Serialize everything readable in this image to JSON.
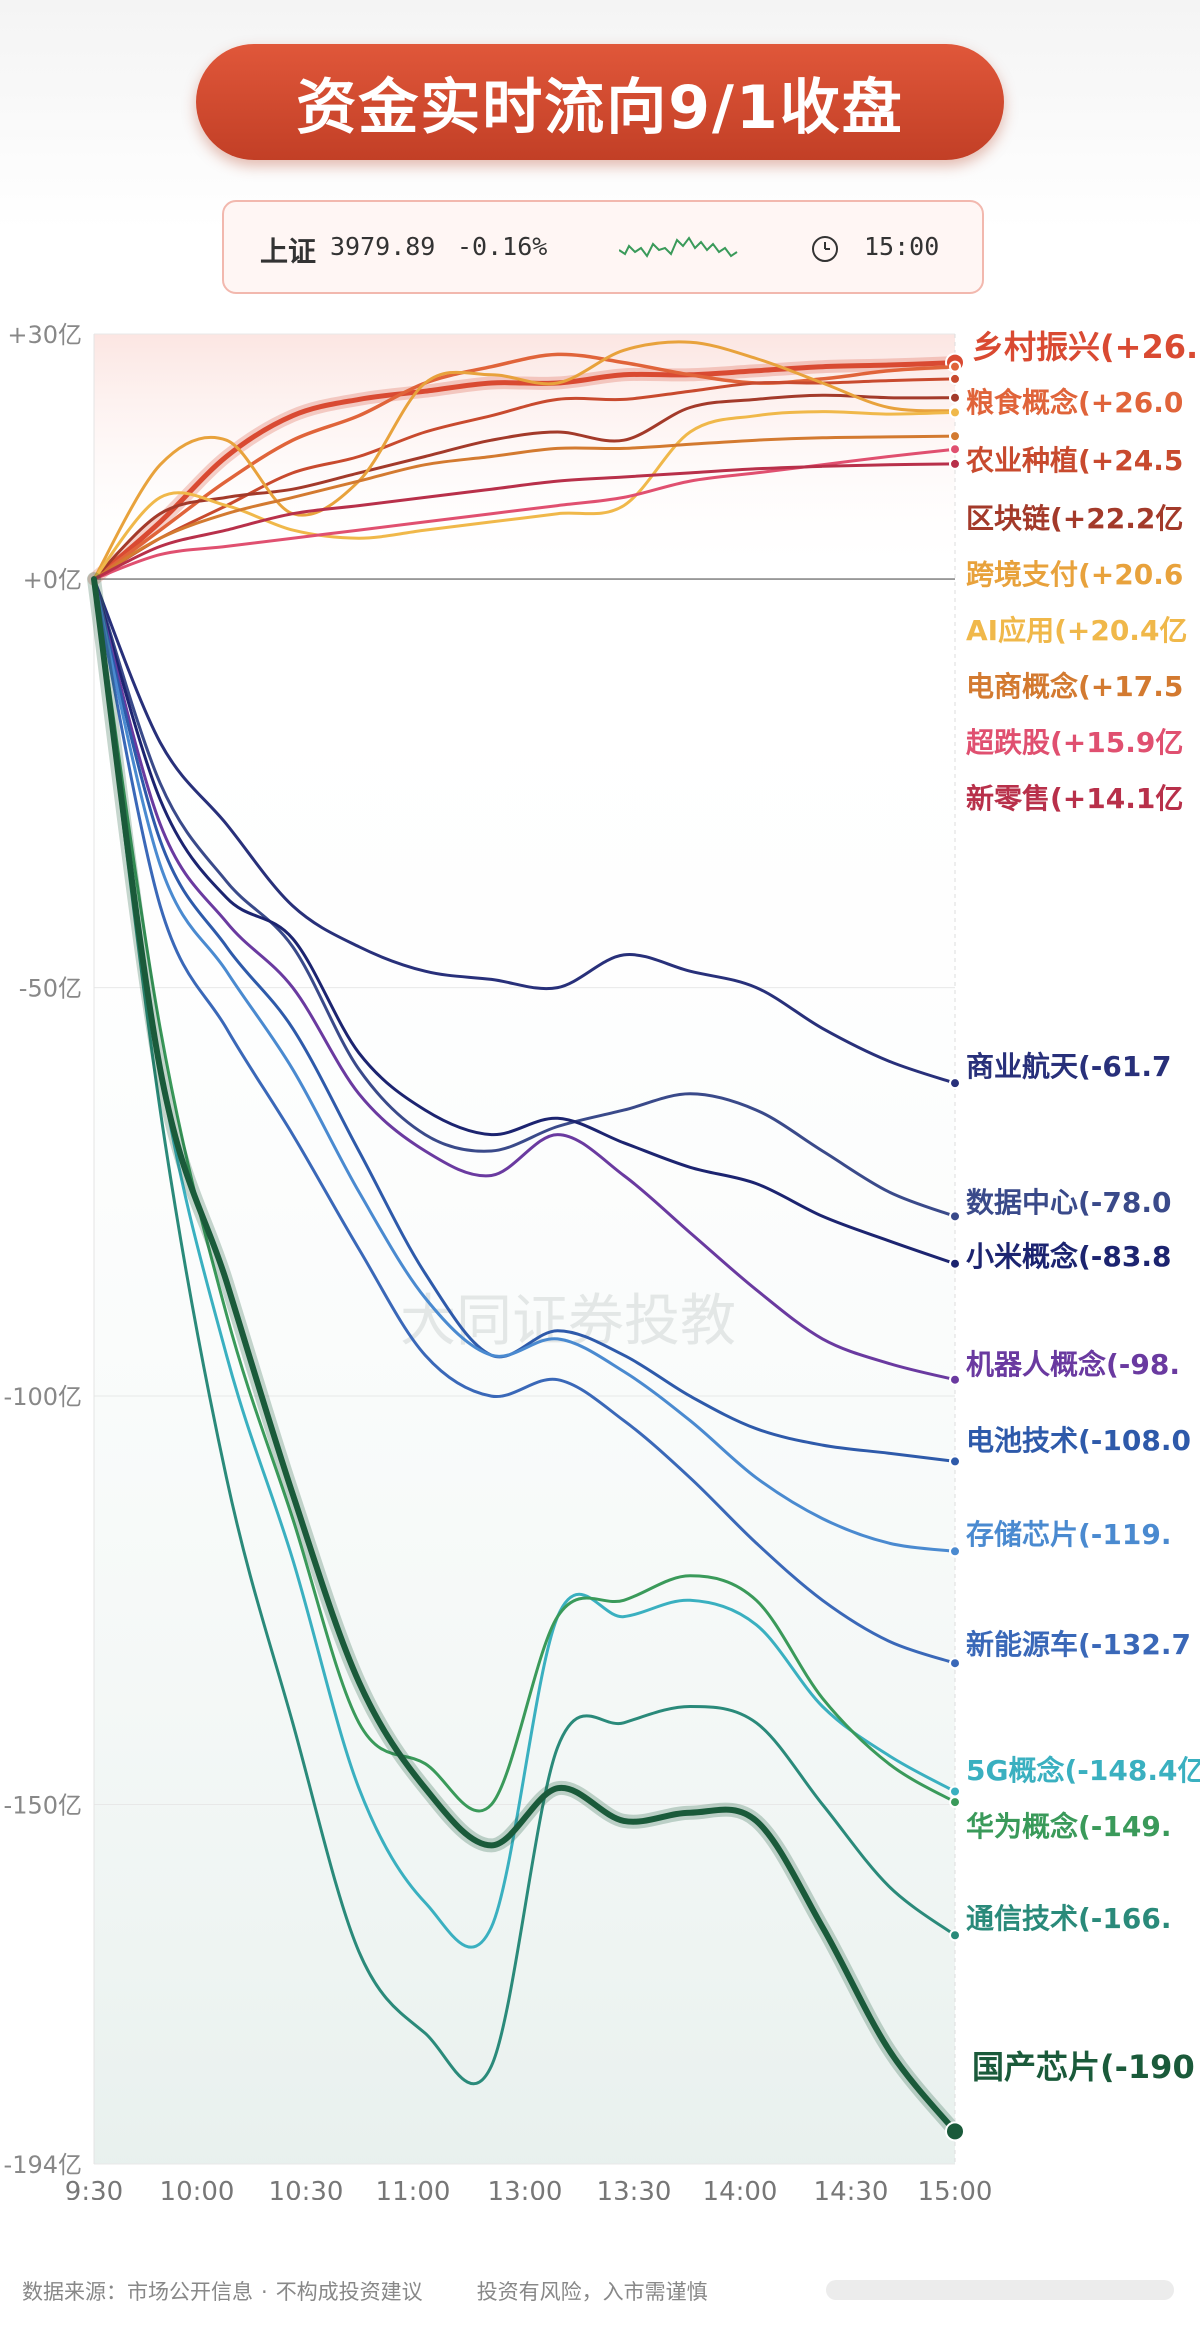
{
  "title": "资金实时流向9/1收盘",
  "index": {
    "name": "上证",
    "value": "3979.89",
    "change": "-0.16%",
    "time": "15:00",
    "colors": {
      "spark": "#3a9a5a"
    }
  },
  "watermark": "大同证券投教",
  "footer": {
    "source": "数据来源：市场公开信息",
    "sep": "·",
    "disclaimer": "不构成投资建议",
    "risk": "投资有风险，入市需谨慎"
  },
  "chart_data": {
    "type": "line",
    "ylabel": "",
    "ylim": [
      -194,
      30
    ],
    "y_ticks": [
      30,
      0,
      -50,
      -100,
      -150,
      -194
    ],
    "y_tick_labels": [
      "+30亿",
      "+0亿",
      "-50亿",
      "-100亿",
      "-150亿",
      "-194亿"
    ],
    "x_ticks": [
      "9:30",
      "10:00",
      "10:30",
      "11:00",
      "13:00",
      "13:30",
      "14:00",
      "14:30",
      "15:00"
    ],
    "series": [
      {
        "name": "乡村振兴",
        "label": "乡村振兴(+26.",
        "color": "#d94a32",
        "width": 5,
        "values": [
          0,
          7,
          15,
          20,
          22,
          23,
          24,
          24,
          25,
          25,
          25.5,
          26,
          26.2,
          26.5
        ]
      },
      {
        "name": "粮食概念",
        "label": "粮食概念(+26.0",
        "color": "#e0643a",
        "width": 3.5,
        "values": [
          0,
          6,
          12,
          17,
          20,
          24,
          26,
          27.5,
          26.5,
          25,
          24,
          24.5,
          25.5,
          26
        ]
      },
      {
        "name": "农业种植",
        "label": "农业种植(+24.5",
        "color": "#c84a2e",
        "width": 3,
        "values": [
          0,
          5,
          9,
          13,
          15,
          18,
          20,
          22,
          22,
          23,
          24,
          24,
          24.3,
          24.5
        ]
      },
      {
        "name": "区块链",
        "label": "区块链(+22.2亿",
        "color": "#a33a2a",
        "width": 3,
        "values": [
          0,
          8,
          10,
          11,
          13,
          15,
          17,
          18,
          17,
          21,
          22,
          22.5,
          22.2,
          22.2
        ]
      },
      {
        "name": "跨境支付",
        "label": "跨境支付(+20.6",
        "color": "#e8a23c",
        "width": 3,
        "values": [
          0,
          14,
          17,
          8,
          12,
          24,
          25,
          24,
          28,
          29,
          27,
          24,
          21,
          20.6
        ]
      },
      {
        "name": "AI应用",
        "label": "AI应用(+20.4亿",
        "color": "#f0b84a",
        "width": 3,
        "values": [
          0,
          10,
          9,
          6,
          5,
          6,
          7,
          8,
          9,
          18,
          20,
          20.5,
          20.2,
          20.4
        ]
      },
      {
        "name": "电商概念",
        "label": "电商概念(+17.5",
        "color": "#d37a30",
        "width": 3,
        "values": [
          0,
          5,
          8,
          10,
          12,
          14,
          15,
          16,
          16,
          16.5,
          17,
          17.3,
          17.4,
          17.5
        ]
      },
      {
        "name": "超跌股",
        "label": "超跌股(+15.9亿",
        "color": "#e05070",
        "width": 3,
        "values": [
          0,
          3,
          4,
          5,
          6,
          7,
          8,
          9,
          10,
          12,
          13,
          14,
          15,
          15.9
        ]
      },
      {
        "name": "新零售",
        "label": "新零售(+14.1亿",
        "color": "#b8304a",
        "width": 3,
        "values": [
          0,
          4,
          6,
          8,
          9,
          10,
          11,
          12,
          12.5,
          13,
          13.5,
          13.8,
          14,
          14.1
        ]
      },
      {
        "name": "商业航天",
        "label": "商业航天(-61.7",
        "color": "#28307a",
        "width": 3,
        "values": [
          0,
          -20,
          -30,
          -40,
          -45,
          -48,
          -49,
          -50,
          -46,
          -48,
          -50,
          -55,
          -59,
          -61.7
        ]
      },
      {
        "name": "数据中心",
        "label": "数据中心(-78.0",
        "color": "#3a4a8a",
        "width": 3,
        "values": [
          0,
          -25,
          -37,
          -45,
          -60,
          -68,
          -70,
          -67,
          -65,
          -63,
          -65,
          -70,
          -75,
          -78
        ]
      },
      {
        "name": "小米概念",
        "label": "小米概念(-83.8",
        "color": "#1c2470",
        "width": 3,
        "values": [
          0,
          -27,
          -39,
          -44,
          -58,
          -65,
          -68,
          -66,
          -69,
          -72,
          -74,
          -78,
          -81,
          -83.8
        ]
      },
      {
        "name": "机器人概念",
        "label": "机器人概念(-98.",
        "color": "#6a3aa0",
        "width": 3,
        "values": [
          0,
          -30,
          -42,
          -50,
          -63,
          -70,
          -73,
          -68,
          -73,
          -80,
          -87,
          -93,
          -96,
          -98
        ]
      },
      {
        "name": "电池技术",
        "label": "电池技术(-108.0",
        "color": "#2e5aaa",
        "width": 3,
        "values": [
          0,
          -32,
          -45,
          -55,
          -70,
          -85,
          -95,
          -92,
          -95,
          -100,
          -104,
          -106,
          -107,
          -108
        ]
      },
      {
        "name": "存储芯片",
        "label": "存储芯片(-119.",
        "color": "#4a8ad0",
        "width": 3,
        "values": [
          0,
          -35,
          -48,
          -60,
          -75,
          -88,
          -95,
          -93,
          -97,
          -103,
          -110,
          -115,
          -118,
          -119
        ]
      },
      {
        "name": "新能源车",
        "label": "新能源车(-132.7",
        "color": "#3a68b8",
        "width": 3,
        "values": [
          0,
          -40,
          -55,
          -68,
          -82,
          -95,
          -100,
          -98,
          -103,
          -110,
          -118,
          -125,
          -130,
          -132.7
        ]
      },
      {
        "name": "5G概念",
        "label": "5G概念(-148.4亿",
        "color": "#3ab0c0",
        "width": 3,
        "values": [
          0,
          -60,
          -95,
          -120,
          -148,
          -162,
          -165,
          -127,
          -127,
          -125,
          -128,
          -138,
          -144,
          -148.4
        ]
      },
      {
        "name": "华为概念",
        "label": "华为概念(-149.",
        "color": "#3a9a5a",
        "width": 3,
        "values": [
          0,
          -55,
          -90,
          -115,
          -140,
          -145,
          -150,
          -127,
          -125,
          -122,
          -125,
          -137,
          -145,
          -149.7
        ]
      },
      {
        "name": "通信技术",
        "label": "通信技术(-166.",
        "color": "#2a8a7a",
        "width": 3,
        "values": [
          0,
          -65,
          -110,
          -140,
          -168,
          -178,
          -182,
          -143,
          -140,
          -138,
          -140,
          -150,
          -160,
          -166
        ]
      },
      {
        "name": "国产芯片",
        "label": "国产芯片(-190",
        "color": "#1a5a3a",
        "width": 6,
        "values": [
          0,
          -60,
          -86,
          -112,
          -135,
          -148,
          -155,
          -148,
          -152,
          -151,
          -152,
          -165,
          -180,
          -190
        ]
      }
    ]
  }
}
